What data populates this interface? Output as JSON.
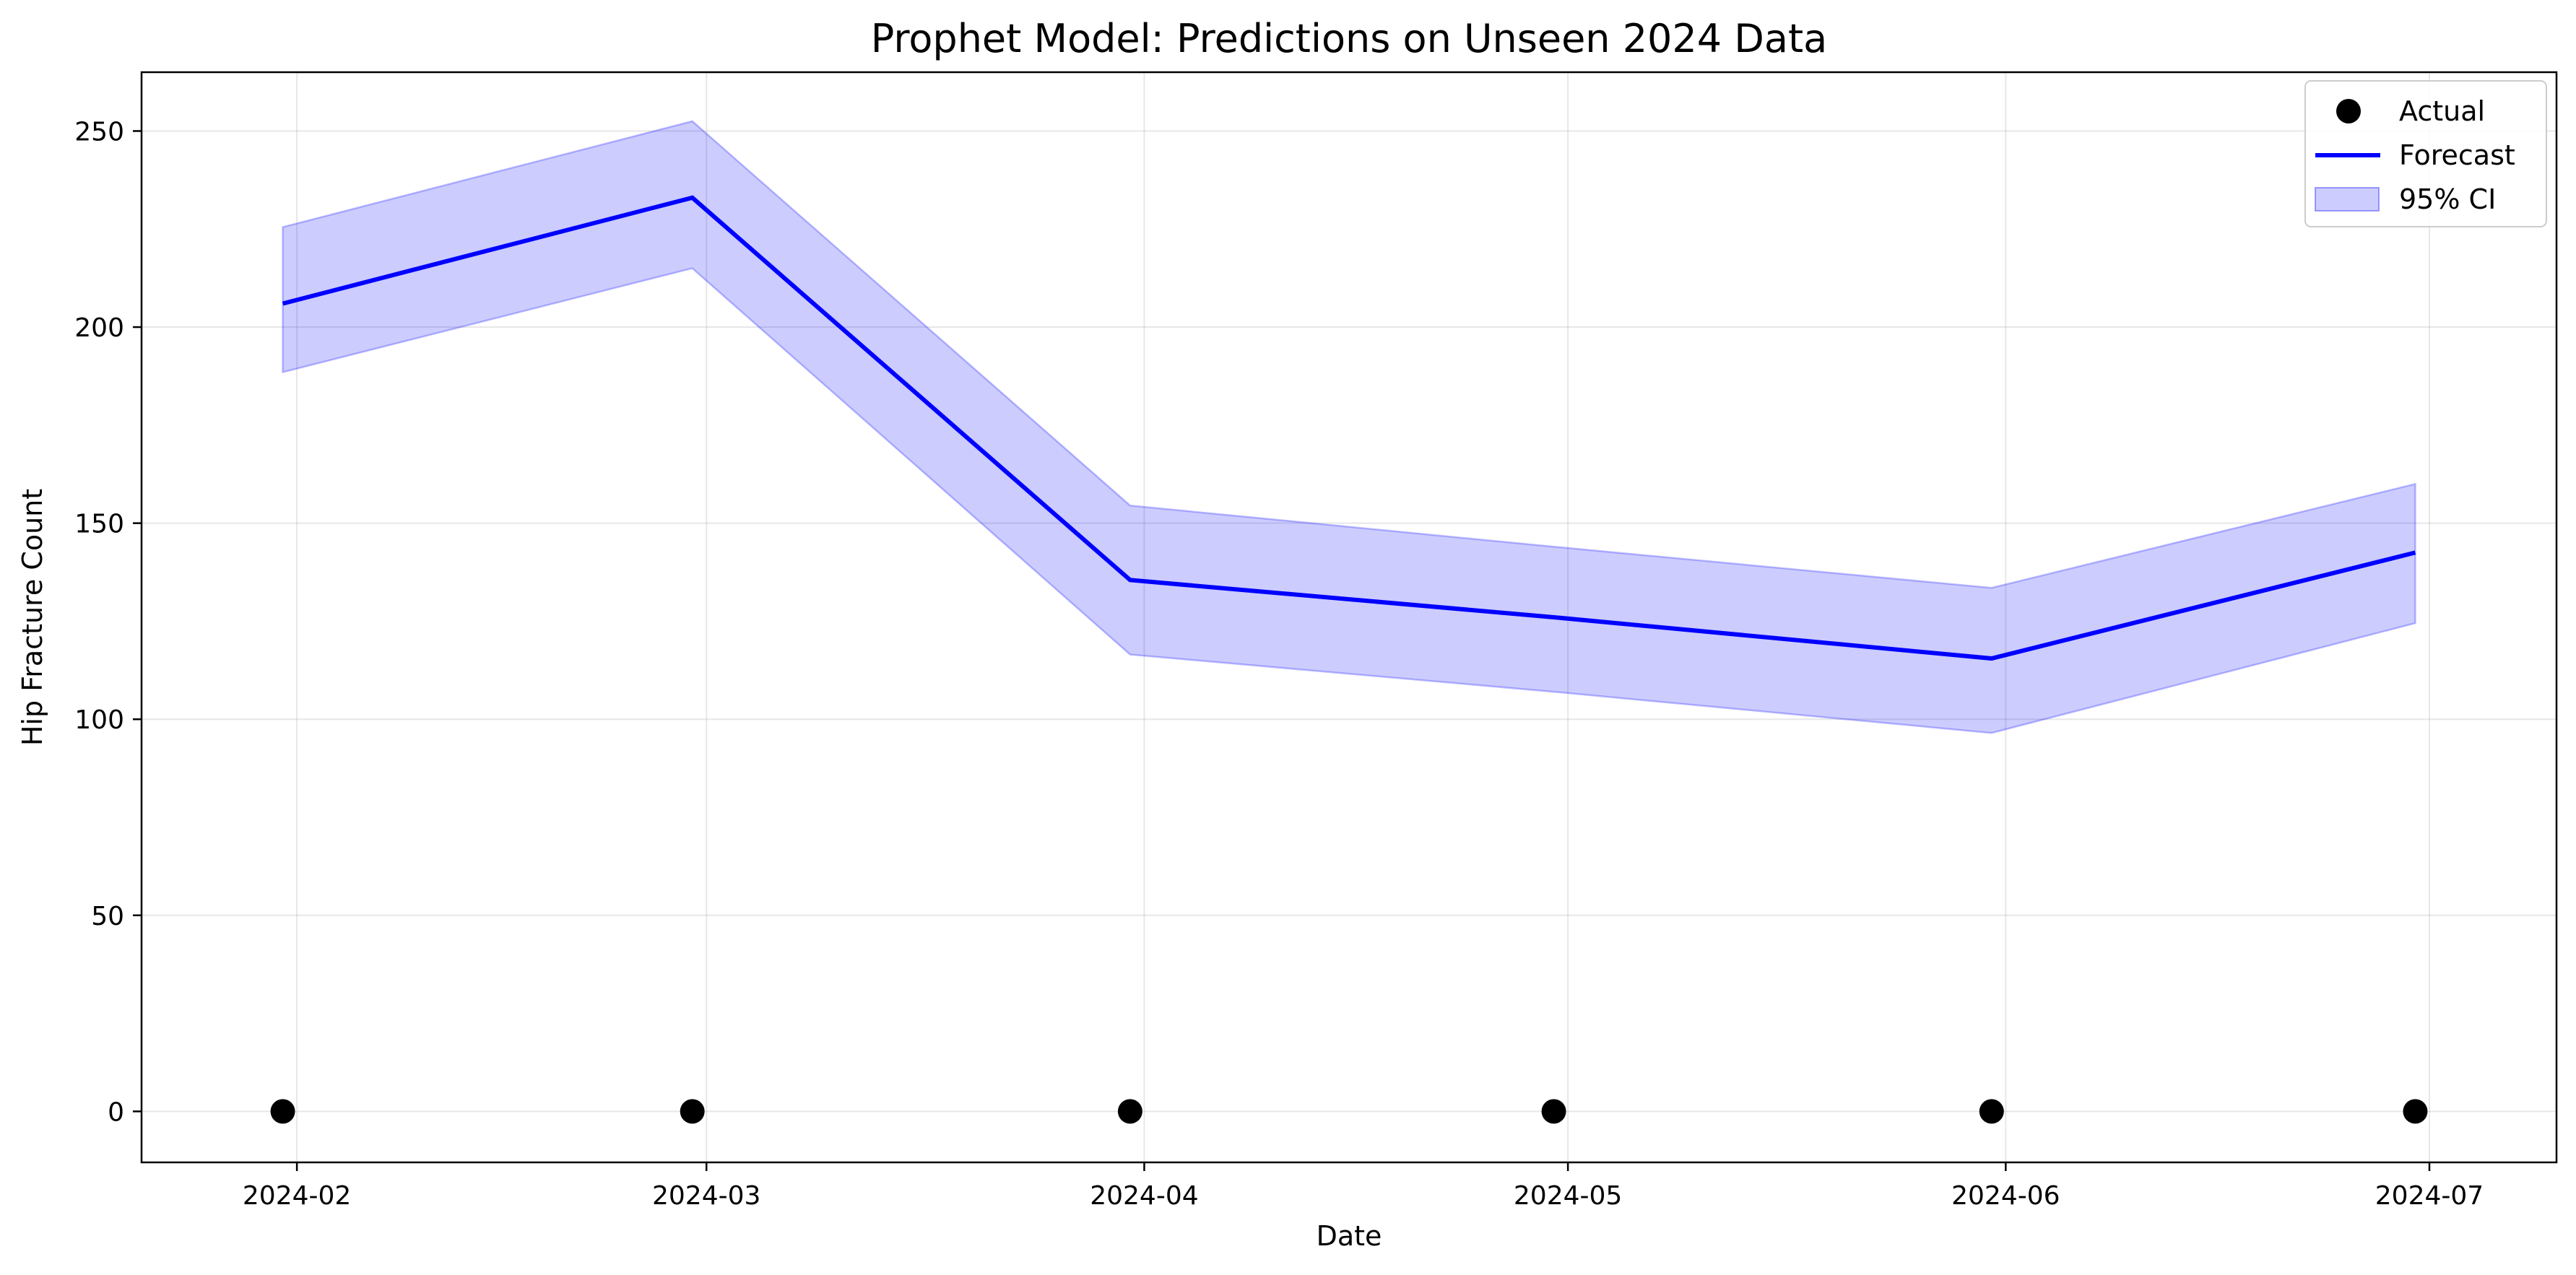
{
  "chart_data": {
    "type": "line",
    "title": "Prophet Model: Predictions on Unseen 2024 Data",
    "xlabel": "Date",
    "ylabel": "Hip Fracture Count",
    "grid": true,
    "legend": {
      "position": "top-right",
      "entries": [
        "Actual",
        "Forecast",
        "95% CI"
      ]
    },
    "x_ticks": [
      "2024-02",
      "2024-03",
      "2024-04",
      "2024-05",
      "2024-06",
      "2024-07"
    ],
    "x_range": [
      "2024-01-21",
      "2024-07-10"
    ],
    "y_ticks": [
      0,
      50,
      100,
      150,
      200,
      250
    ],
    "ylim": [
      -13,
      265
    ],
    "x": [
      "2024-01-31",
      "2024-02-29",
      "2024-03-31",
      "2024-04-30",
      "2024-05-31",
      "2024-06-30"
    ],
    "series": [
      {
        "name": "Actual",
        "kind": "scatter",
        "color": "#000000",
        "values": [
          0,
          0,
          0,
          0,
          0,
          0
        ]
      },
      {
        "name": "Forecast",
        "kind": "line",
        "color": "#0000ff",
        "values": [
          206,
          233,
          135.5,
          126,
          115.5,
          142.5
        ]
      },
      {
        "name": "95% CI",
        "kind": "band",
        "color": "#0000ff",
        "lower": [
          188.5,
          215,
          116.5,
          107,
          96.5,
          124.5
        ],
        "upper": [
          225.5,
          252.5,
          154.5,
          144,
          133.5,
          160
        ]
      }
    ]
  }
}
